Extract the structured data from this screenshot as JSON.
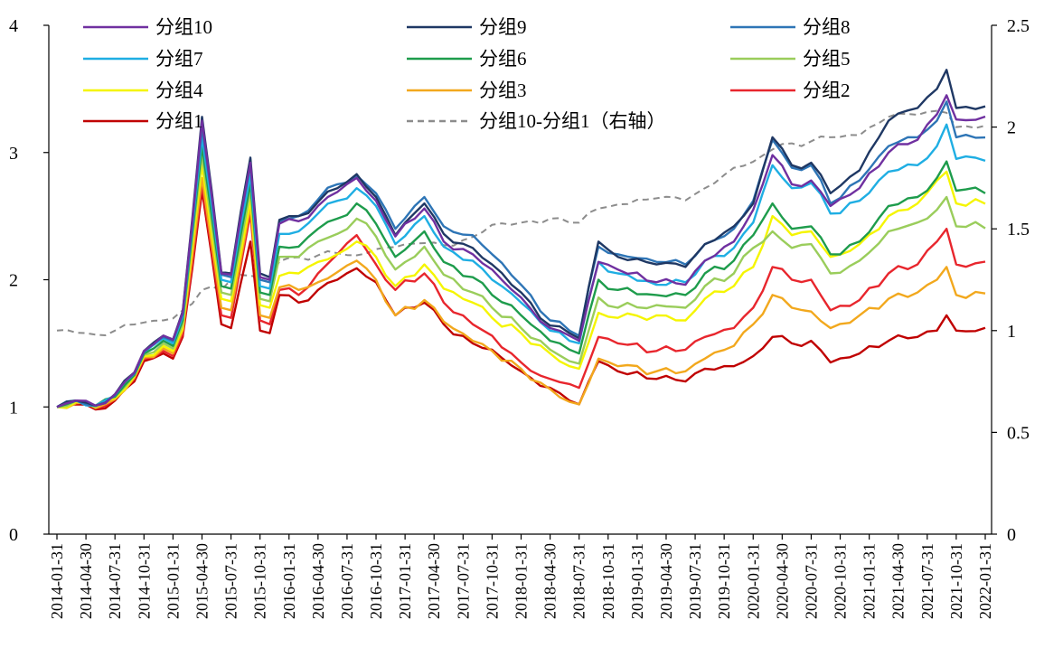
{
  "chart_data": {
    "type": "line",
    "title": "",
    "xlabel": "",
    "ylabel": "",
    "ylim": [
      0,
      4
    ],
    "y2lim": [
      0,
      2.5
    ],
    "yticks": [
      0,
      1,
      2,
      3,
      4
    ],
    "y2ticks": [
      0,
      0.5,
      1,
      1.5,
      2,
      2.5
    ],
    "y2tick_labels": [
      "0",
      "0.5",
      "1",
      "1.5",
      "2",
      "2.5"
    ],
    "legend_position": "top",
    "x": [
      "2014-01-31",
      "2014-02-28",
      "2014-03-31",
      "2014-04-30",
      "2014-05-31",
      "2014-06-30",
      "2014-07-31",
      "2014-08-31",
      "2014-09-30",
      "2014-10-31",
      "2014-11-30",
      "2014-12-31",
      "2015-01-31",
      "2015-02-28",
      "2015-03-31",
      "2015-04-30",
      "2015-05-31",
      "2015-06-30",
      "2015-07-31",
      "2015-08-31",
      "2015-09-30",
      "2015-10-31",
      "2015-11-30",
      "2015-12-31",
      "2016-01-31",
      "2016-02-29",
      "2016-03-31",
      "2016-04-30",
      "2016-05-31",
      "2016-06-30",
      "2016-07-31",
      "2016-08-31",
      "2016-09-30",
      "2016-10-31",
      "2016-11-30",
      "2016-12-31",
      "2017-01-31",
      "2017-02-28",
      "2017-03-31",
      "2017-04-30",
      "2017-05-31",
      "2017-06-30",
      "2017-07-31",
      "2017-08-31",
      "2017-09-30",
      "2017-10-31",
      "2017-11-30",
      "2017-12-31",
      "2018-01-31",
      "2018-02-28",
      "2018-03-31",
      "2018-04-30",
      "2018-05-31",
      "2018-06-30",
      "2018-07-31",
      "2018-08-31",
      "2018-09-30",
      "2018-10-31",
      "2018-11-30",
      "2018-12-31",
      "2019-01-31",
      "2019-02-28",
      "2019-03-31",
      "2019-04-30",
      "2019-05-31",
      "2019-06-30",
      "2019-07-31",
      "2019-08-31",
      "2019-09-30",
      "2019-10-31",
      "2019-11-30",
      "2019-12-31",
      "2020-01-31",
      "2020-02-29",
      "2020-03-31",
      "2020-04-30",
      "2020-05-31",
      "2020-06-30",
      "2020-07-31",
      "2020-08-31",
      "2020-09-30",
      "2020-10-31",
      "2020-11-30",
      "2020-12-31",
      "2021-01-31",
      "2021-02-28",
      "2021-03-31",
      "2021-04-30",
      "2021-05-31",
      "2021-06-30",
      "2021-07-31",
      "2021-08-31",
      "2021-09-30",
      "2021-10-31",
      "2021-11-30",
      "2021-12-31",
      "2022-01-31"
    ],
    "x_tick_labels": [
      "2014-01-31",
      "2014-04-30",
      "2014-07-31",
      "2014-10-31",
      "2015-01-31",
      "2015-04-30",
      "2015-07-31",
      "2015-10-31",
      "2016-01-31",
      "2016-04-30",
      "2016-07-31",
      "2016-10-31",
      "2017-01-31",
      "2017-04-30",
      "2017-07-31",
      "2017-10-31",
      "2018-01-31",
      "2018-04-30",
      "2018-07-31",
      "2018-10-31",
      "2019-01-31",
      "2019-04-30",
      "2019-07-31",
      "2019-10-31",
      "2020-01-31",
      "2020-04-30",
      "2020-07-31",
      "2020-10-31",
      "2021-01-31",
      "2021-04-30",
      "2021-07-31",
      "2021-10-31",
      "2022-01-31"
    ],
    "anchors": [
      {
        "i": 0,
        "g1": 1.0,
        "g2": 1.0,
        "g3": 1.0,
        "g4": 1.0,
        "g5": 1.0,
        "g6": 1.0,
        "g7": 1.0,
        "g8": 1.0,
        "g9": 1.0,
        "g10": 1.0,
        "d": 1.0
      },
      {
        "i": 2,
        "g1": 1.02,
        "g2": 1.03,
        "g3": 1.03,
        "g4": 1.04,
        "g5": 1.05,
        "g6": 1.05,
        "g7": 1.05,
        "g8": 1.05,
        "g9": 1.05,
        "g10": 1.05,
        "d": 0.99
      },
      {
        "i": 4,
        "g1": 0.98,
        "g2": 0.99,
        "g3": 0.99,
        "g4": 1.0,
        "g5": 1.0,
        "g6": 1.01,
        "g7": 1.01,
        "g8": 1.01,
        "g9": 1.01,
        "g10": 1.01,
        "d": 0.98
      },
      {
        "i": 6,
        "g1": 1.05,
        "g2": 1.06,
        "g3": 1.06,
        "g4": 1.07,
        "g5": 1.08,
        "g6": 1.08,
        "g7": 1.09,
        "g8": 1.09,
        "g9": 1.1,
        "g10": 1.1,
        "d": 1.0
      },
      {
        "i": 8,
        "g1": 1.2,
        "g2": 1.22,
        "g3": 1.23,
        "g4": 1.24,
        "g5": 1.25,
        "g6": 1.25,
        "g7": 1.26,
        "g8": 1.26,
        "g9": 1.27,
        "g10": 1.27,
        "d": 1.03
      },
      {
        "i": 9,
        "g1": 1.36,
        "g2": 1.38,
        "g3": 1.39,
        "g4": 1.4,
        "g5": 1.41,
        "g6": 1.42,
        "g7": 1.43,
        "g8": 1.43,
        "g9": 1.44,
        "g10": 1.44,
        "d": 1.04
      },
      {
        "i": 11,
        "g1": 1.42,
        "g2": 1.44,
        "g3": 1.46,
        "g4": 1.48,
        "g5": 1.5,
        "g6": 1.52,
        "g7": 1.54,
        "g8": 1.55,
        "g9": 1.56,
        "g10": 1.56,
        "d": 1.05
      },
      {
        "i": 12,
        "g1": 1.38,
        "g2": 1.4,
        "g3": 1.42,
        "g4": 1.44,
        "g5": 1.46,
        "g6": 1.48,
        "g7": 1.5,
        "g8": 1.52,
        "g9": 1.53,
        "g10": 1.53,
        "d": 1.06
      },
      {
        "i": 13,
        "g1": 1.55,
        "g2": 1.57,
        "g3": 1.6,
        "g4": 1.62,
        "g5": 1.65,
        "g6": 1.68,
        "g7": 1.71,
        "g8": 1.73,
        "g9": 1.75,
        "g10": 1.74,
        "d": 1.1
      },
      {
        "i": 15,
        "g1": 2.7,
        "g2": 2.74,
        "g3": 2.8,
        "g4": 2.9,
        "g5": 2.98,
        "g6": 3.05,
        "g7": 3.12,
        "g8": 3.2,
        "g9": 3.28,
        "g10": 3.25,
        "d": 1.2
      },
      {
        "i": 17,
        "g1": 1.65,
        "g2": 1.72,
        "g3": 1.78,
        "g4": 1.85,
        "g5": 1.9,
        "g6": 1.95,
        "g7": 2.0,
        "g8": 2.04,
        "g9": 2.06,
        "g10": 2.05,
        "d": 1.2
      },
      {
        "i": 18,
        "g1": 1.62,
        "g2": 1.7,
        "g3": 1.76,
        "g4": 1.83,
        "g5": 1.88,
        "g6": 1.93,
        "g7": 1.98,
        "g8": 2.02,
        "g9": 2.05,
        "g10": 2.04,
        "d": 1.25
      },
      {
        "i": 20,
        "g1": 2.3,
        "g2": 2.52,
        "g3": 2.58,
        "g4": 2.62,
        "g5": 2.7,
        "g6": 2.76,
        "g7": 2.82,
        "g8": 2.9,
        "g9": 2.96,
        "g10": 2.92,
        "d": 1.27
      },
      {
        "i": 21,
        "g1": 1.6,
        "g2": 1.68,
        "g3": 1.72,
        "g4": 1.8,
        "g5": 1.85,
        "g6": 1.9,
        "g7": 1.95,
        "g8": 2.0,
        "g9": 2.05,
        "g10": 2.02,
        "d": 1.26
      },
      {
        "i": 22,
        "g1": 1.58,
        "g2": 1.65,
        "g3": 1.7,
        "g4": 1.78,
        "g5": 1.83,
        "g6": 1.88,
        "g7": 1.93,
        "g8": 1.98,
        "g9": 2.02,
        "g10": 2.0,
        "d": 1.25
      },
      {
        "i": 23,
        "g1": 1.88,
        "g2": 1.92,
        "g3": 1.94,
        "g4": 2.03,
        "g5": 2.18,
        "g6": 2.26,
        "g7": 2.36,
        "g8": 2.46,
        "g9": 2.47,
        "g10": 2.44,
        "d": 1.34
      },
      {
        "i": 25,
        "g1": 1.82,
        "g2": 1.88,
        "g3": 1.92,
        "g4": 2.05,
        "g5": 2.18,
        "g6": 2.26,
        "g7": 2.38,
        "g8": 2.5,
        "g9": 2.5,
        "g10": 2.46,
        "d": 1.36
      },
      {
        "i": 27,
        "g1": 1.92,
        "g2": 2.05,
        "g3": 1.98,
        "g4": 2.14,
        "g5": 2.3,
        "g6": 2.4,
        "g7": 2.52,
        "g8": 2.63,
        "g9": 2.61,
        "g10": 2.58,
        "d": 1.37
      },
      {
        "i": 29,
        "g1": 2.0,
        "g2": 2.2,
        "g3": 2.06,
        "g4": 2.2,
        "g5": 2.36,
        "g6": 2.48,
        "g7": 2.62,
        "g8": 2.75,
        "g9": 2.72,
        "g10": 2.69,
        "d": 1.38
      },
      {
        "i": 31,
        "g1": 2.09,
        "g2": 2.35,
        "g3": 2.15,
        "g4": 2.3,
        "g5": 2.48,
        "g6": 2.6,
        "g7": 2.72,
        "g8": 2.82,
        "g9": 2.83,
        "g10": 2.8,
        "d": 1.37
      },
      {
        "i": 33,
        "g1": 1.98,
        "g2": 2.12,
        "g3": 2.0,
        "g4": 2.18,
        "g5": 2.34,
        "g6": 2.44,
        "g7": 2.58,
        "g8": 2.68,
        "g9": 2.65,
        "g10": 2.62,
        "d": 1.4
      },
      {
        "i": 35,
        "g1": 1.72,
        "g2": 1.92,
        "g3": 1.72,
        "g4": 1.95,
        "g5": 2.08,
        "g6": 2.18,
        "g7": 2.28,
        "g8": 2.4,
        "g9": 2.35,
        "g10": 2.34,
        "d": 1.41
      },
      {
        "i": 38,
        "g1": 1.82,
        "g2": 2.05,
        "g3": 1.84,
        "g4": 2.12,
        "g5": 2.26,
        "g6": 2.38,
        "g7": 2.5,
        "g8": 2.65,
        "g9": 2.6,
        "g10": 2.56,
        "d": 1.43
      },
      {
        "i": 40,
        "g1": 1.65,
        "g2": 1.82,
        "g3": 1.67,
        "g4": 1.93,
        "g5": 2.04,
        "g6": 2.14,
        "g7": 2.26,
        "g8": 2.42,
        "g9": 2.36,
        "g10": 2.3,
        "d": 1.42
      },
      {
        "i": 43,
        "g1": 1.5,
        "g2": 1.65,
        "g3": 1.52,
        "g4": 1.82,
        "g5": 1.9,
        "g6": 2.02,
        "g7": 2.15,
        "g8": 2.35,
        "g9": 2.25,
        "g10": 2.2,
        "d": 1.46
      },
      {
        "i": 45,
        "g1": 1.45,
        "g2": 1.56,
        "g3": 1.44,
        "g4": 1.7,
        "g5": 1.78,
        "g6": 1.88,
        "g7": 2.0,
        "g8": 2.2,
        "g9": 2.12,
        "g10": 2.08,
        "d": 1.52
      },
      {
        "i": 48,
        "g1": 1.28,
        "g2": 1.35,
        "g3": 1.3,
        "g4": 1.58,
        "g5": 1.62,
        "g6": 1.72,
        "g7": 1.82,
        "g8": 1.96,
        "g9": 1.9,
        "g10": 1.86,
        "d": 1.53
      },
      {
        "i": 51,
        "g1": 1.15,
        "g2": 1.22,
        "g3": 1.14,
        "g4": 1.42,
        "g5": 1.45,
        "g6": 1.52,
        "g7": 1.6,
        "g8": 1.68,
        "g9": 1.64,
        "g10": 1.62,
        "d": 1.55
      },
      {
        "i": 53,
        "g1": 1.05,
        "g2": 1.18,
        "g3": 1.04,
        "g4": 1.32,
        "g5": 1.36,
        "g6": 1.45,
        "g7": 1.52,
        "g8": 1.6,
        "g9": 1.58,
        "g10": 1.56,
        "d": 1.53
      },
      {
        "i": 54,
        "g1": 1.02,
        "g2": 1.15,
        "g3": 1.02,
        "g4": 1.3,
        "g5": 1.34,
        "g6": 1.42,
        "g7": 1.5,
        "g8": 1.56,
        "g9": 1.54,
        "g10": 1.52,
        "d": 1.53
      },
      {
        "i": 56,
        "g1": 1.36,
        "g2": 1.55,
        "g3": 1.38,
        "g4": 1.74,
        "g5": 1.86,
        "g6": 2.0,
        "g7": 2.14,
        "g8": 2.26,
        "g9": 2.3,
        "g10": 2.14,
        "d": 1.6
      },
      {
        "i": 58,
        "g1": 1.28,
        "g2": 1.5,
        "g3": 1.32,
        "g4": 1.7,
        "g5": 1.78,
        "g6": 1.92,
        "g7": 2.05,
        "g8": 2.2,
        "g9": 2.18,
        "g10": 2.08,
        "d": 1.62
      },
      {
        "i": 62,
        "g1": 1.22,
        "g2": 1.44,
        "g3": 1.28,
        "g4": 1.72,
        "g5": 1.8,
        "g6": 1.88,
        "g7": 1.96,
        "g8": 2.14,
        "g9": 2.12,
        "g10": 1.98,
        "d": 1.65
      },
      {
        "i": 65,
        "g1": 1.2,
        "g2": 1.45,
        "g3": 1.28,
        "g4": 1.68,
        "g5": 1.78,
        "g6": 1.88,
        "g7": 1.98,
        "g8": 2.12,
        "g9": 2.1,
        "g10": 1.96,
        "d": 1.64
      },
      {
        "i": 67,
        "g1": 1.3,
        "g2": 1.55,
        "g3": 1.38,
        "g4": 1.85,
        "g5": 1.95,
        "g6": 2.05,
        "g7": 2.15,
        "g8": 2.28,
        "g9": 2.28,
        "g10": 2.15,
        "d": 1.7
      },
      {
        "i": 70,
        "g1": 1.32,
        "g2": 1.62,
        "g3": 1.48,
        "g4": 1.95,
        "g5": 2.05,
        "g6": 2.15,
        "g7": 2.25,
        "g8": 2.4,
        "g9": 2.42,
        "g10": 2.3,
        "d": 1.8
      },
      {
        "i": 72,
        "g1": 1.4,
        "g2": 1.78,
        "g3": 1.65,
        "g4": 2.1,
        "g5": 2.25,
        "g6": 2.35,
        "g7": 2.45,
        "g8": 2.62,
        "g9": 2.6,
        "g10": 2.55,
        "d": 1.83
      },
      {
        "i": 74,
        "g1": 1.55,
        "g2": 2.1,
        "g3": 1.88,
        "g4": 2.5,
        "g5": 2.38,
        "g6": 2.6,
        "g7": 2.9,
        "g8": 3.1,
        "g9": 3.12,
        "g10": 2.98,
        "d": 1.89
      },
      {
        "i": 76,
        "g1": 1.5,
        "g2": 2.0,
        "g3": 1.78,
        "g4": 2.35,
        "g5": 2.25,
        "g6": 2.4,
        "g7": 2.72,
        "g8": 2.88,
        "g9": 2.9,
        "g10": 2.75,
        "d": 1.92
      },
      {
        "i": 78,
        "g1": 1.52,
        "g2": 2.0,
        "g3": 1.75,
        "g4": 2.38,
        "g5": 2.28,
        "g6": 2.42,
        "g7": 2.76,
        "g8": 2.9,
        "g9": 2.92,
        "g10": 2.78,
        "d": 1.93
      },
      {
        "i": 80,
        "g1": 1.35,
        "g2": 1.76,
        "g3": 1.62,
        "g4": 2.18,
        "g5": 2.05,
        "g6": 2.2,
        "g7": 2.52,
        "g8": 2.6,
        "g9": 2.68,
        "g10": 2.58,
        "d": 1.95
      },
      {
        "i": 83,
        "g1": 1.42,
        "g2": 1.84,
        "g3": 1.72,
        "g4": 2.28,
        "g5": 2.15,
        "g6": 2.3,
        "g7": 2.62,
        "g8": 2.78,
        "g9": 2.86,
        "g10": 2.72,
        "d": 1.96
      },
      {
        "i": 86,
        "g1": 1.52,
        "g2": 2.05,
        "g3": 1.85,
        "g4": 2.5,
        "g5": 2.38,
        "g6": 2.58,
        "g7": 2.85,
        "g8": 3.05,
        "g9": 3.25,
        "g10": 3.0,
        "d": 2.05
      },
      {
        "i": 89,
        "g1": 1.55,
        "g2": 2.12,
        "g3": 1.9,
        "g4": 2.6,
        "g5": 2.45,
        "g6": 2.65,
        "g7": 2.9,
        "g8": 3.12,
        "g9": 3.35,
        "g10": 3.1,
        "d": 2.06
      },
      {
        "i": 91,
        "g1": 1.6,
        "g2": 2.3,
        "g3": 2.0,
        "g4": 2.78,
        "g5": 2.55,
        "g6": 2.8,
        "g7": 3.05,
        "g8": 3.25,
        "g9": 3.5,
        "g10": 3.3,
        "d": 2.08
      },
      {
        "i": 92,
        "g1": 1.72,
        "g2": 2.4,
        "g3": 2.1,
        "g4": 2.85,
        "g5": 2.65,
        "g6": 2.93,
        "g7": 3.22,
        "g8": 3.4,
        "g9": 3.65,
        "g10": 3.45,
        "d": 2.07
      },
      {
        "i": 93,
        "g1": 1.6,
        "g2": 2.12,
        "g3": 1.88,
        "g4": 2.6,
        "g5": 2.42,
        "g6": 2.7,
        "g7": 2.95,
        "g8": 3.12,
        "g9": 3.35,
        "g10": 3.26,
        "d": 2.0
      }
    ],
    "series": [
      {
        "key": "g10",
        "name": "分组10",
        "color": "#7030a0",
        "axis": "left"
      },
      {
        "key": "g9",
        "name": "分组9",
        "color": "#1f3864",
        "axis": "left"
      },
      {
        "key": "g8",
        "name": "分组8",
        "color": "#2e75b6",
        "axis": "left"
      },
      {
        "key": "g7",
        "name": "分组7",
        "color": "#1faee3",
        "axis": "left"
      },
      {
        "key": "g6",
        "name": "分组6",
        "color": "#1e9c4c",
        "axis": "left"
      },
      {
        "key": "g5",
        "name": "分组5",
        "color": "#9acd5b",
        "axis": "left"
      },
      {
        "key": "g4",
        "name": "分组4",
        "color": "#f5f500",
        "axis": "left"
      },
      {
        "key": "g3",
        "name": "分组3",
        "color": "#f2a81d",
        "axis": "left"
      },
      {
        "key": "g2",
        "name": "分组2",
        "color": "#e8262d",
        "axis": "left"
      },
      {
        "key": "g1",
        "name": "分组1",
        "color": "#c00000",
        "axis": "left"
      },
      {
        "key": "d",
        "name": "分组10-分组1（右轴）",
        "color": "#8c8c8c",
        "axis": "right",
        "dashed": true
      }
    ]
  }
}
